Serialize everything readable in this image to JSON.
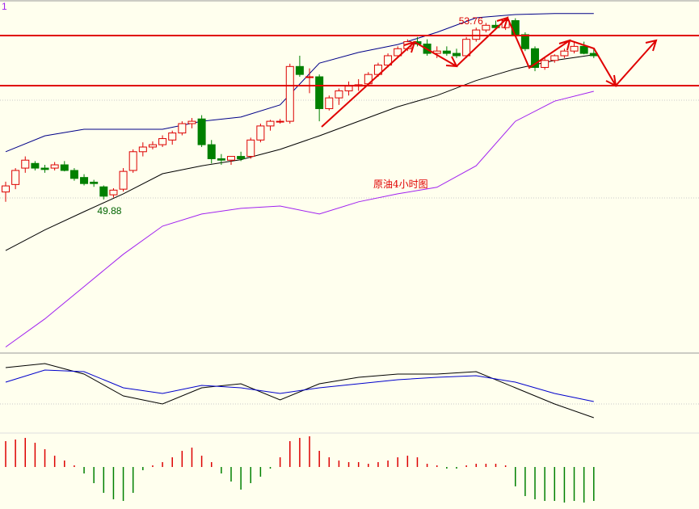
{
  "chart_data": {
    "type": "candlestick",
    "title": "原油4小时图",
    "corner_label": "1",
    "ylim": [
      46.6,
      54.14
    ],
    "open": [
      50.04,
      50.2,
      50.55,
      50.65,
      50.55,
      50.55,
      50.62,
      50.5,
      50.35,
      50.25,
      50.15,
      49.98,
      50.1,
      50.5,
      50.9,
      51.0,
      51.05,
      51.15,
      51.3,
      51.5,
      51.6,
      51.05,
      50.75,
      50.72,
      50.8,
      50.8,
      51.15,
      51.45,
      51.55,
      51.55,
      52.72,
      52.5,
      52.5,
      51.82,
      52.05,
      52.2,
      52.3,
      52.35,
      52.55,
      52.75,
      52.95,
      53.1,
      53.25,
      53.2,
      53.0,
      53.05,
      53.0,
      52.95,
      53.3,
      53.5,
      53.6,
      53.55,
      53.7,
      53.4,
      53.1,
      52.7,
      52.85,
      52.95,
      53.05,
      53.15,
      53.0
    ],
    "high": [
      50.26,
      50.55,
      50.8,
      50.7,
      50.62,
      50.68,
      50.7,
      50.55,
      50.42,
      50.3,
      50.18,
      50.12,
      50.55,
      50.95,
      51.1,
      51.12,
      51.25,
      51.35,
      51.55,
      51.62,
      51.68,
      51.15,
      50.85,
      50.8,
      50.9,
      51.2,
      51.5,
      51.58,
      51.6,
      52.78,
      52.95,
      52.68,
      52.55,
      52.1,
      52.25,
      52.4,
      52.45,
      52.6,
      52.8,
      53.0,
      53.15,
      53.3,
      53.35,
      53.3,
      53.15,
      53.15,
      53.1,
      53.35,
      53.55,
      53.65,
      53.7,
      53.76,
      53.75,
      53.45,
      53.15,
      52.9,
      52.98,
      53.1,
      53.25,
      53.25,
      53.12
    ],
    "low": [
      49.83,
      50.1,
      50.45,
      50.5,
      50.45,
      50.5,
      50.48,
      50.28,
      50.18,
      50.15,
      49.88,
      49.92,
      50.05,
      50.45,
      50.8,
      50.95,
      51.0,
      51.05,
      51.25,
      51.4,
      51.0,
      50.65,
      50.62,
      50.62,
      50.7,
      50.75,
      51.1,
      51.35,
      51.5,
      51.5,
      52.5,
      52.15,
      51.55,
      51.78,
      51.9,
      52.1,
      52.2,
      52.3,
      52.5,
      52.7,
      52.9,
      53.05,
      53.15,
      52.95,
      52.9,
      52.95,
      52.9,
      52.9,
      53.25,
      53.45,
      53.5,
      53.5,
      53.35,
      53.05,
      52.62,
      52.65,
      52.8,
      52.9,
      53.0,
      52.98,
      52.9
    ],
    "close": [
      50.17,
      50.5,
      50.72,
      50.55,
      50.52,
      50.62,
      50.5,
      50.33,
      50.22,
      50.22,
      49.95,
      50.08,
      50.48,
      50.9,
      51.0,
      51.05,
      51.18,
      51.3,
      51.5,
      51.55,
      51.05,
      50.75,
      50.72,
      50.8,
      50.75,
      51.15,
      51.45,
      51.55,
      51.55,
      52.72,
      52.55,
      52.5,
      51.82,
      52.05,
      52.2,
      52.3,
      52.33,
      52.55,
      52.75,
      52.95,
      53.1,
      53.25,
      53.2,
      53.0,
      53.05,
      53.0,
      52.95,
      53.3,
      53.5,
      53.6,
      53.55,
      53.7,
      53.4,
      53.1,
      52.7,
      52.85,
      52.95,
      53.05,
      53.15,
      53.0,
      52.95
    ],
    "up_color": "#dd0000",
    "down_color": "#008000",
    "annotations": [
      {
        "value": 53.76,
        "candle": 52
      },
      {
        "value": 49.88,
        "candle": 11
      }
    ],
    "lines": [
      {
        "color": "#000088",
        "x": [
          0,
          4,
          8,
          12,
          16,
          20,
          24,
          28,
          32,
          36,
          40,
          44,
          48,
          52,
          56,
          60
        ],
        "values": [
          50.9,
          51.24,
          51.38,
          51.38,
          51.38,
          51.55,
          51.64,
          51.9,
          52.79,
          53.02,
          53.19,
          53.45,
          53.76,
          53.83,
          53.85,
          53.85
        ]
      },
      {
        "color": "#000000",
        "x": [
          0,
          4,
          8,
          12,
          16,
          20,
          24,
          28,
          32,
          36,
          40,
          44,
          48,
          52,
          56,
          60
        ],
        "values": [
          48.79,
          49.23,
          49.62,
          50.0,
          50.43,
          50.6,
          50.73,
          50.95,
          51.24,
          51.55,
          51.86,
          52.1,
          52.42,
          52.67,
          52.85,
          52.97
        ]
      },
      {
        "color": "#a020f0",
        "x": [
          0,
          4,
          8,
          12,
          16,
          20,
          24,
          28,
          32,
          36,
          40,
          44,
          48,
          52,
          56,
          60
        ],
        "values": [
          46.73,
          47.33,
          48.02,
          48.71,
          49.31,
          49.57,
          49.69,
          49.74,
          49.57,
          49.83,
          50.0,
          50.14,
          50.6,
          51.55,
          51.98,
          52.19
        ]
      }
    ],
    "macd_ylim": [
      -0.45,
      0.45
    ],
    "macd_lines": [
      {
        "color": "#000000",
        "x": [
          0,
          4,
          8,
          12,
          16,
          20,
          24,
          28,
          32,
          36,
          40,
          44,
          48,
          52,
          56,
          60
        ],
        "values": [
          0.3,
          0.35,
          0.22,
          -0.05,
          -0.15,
          0.05,
          0.1,
          -0.1,
          0.1,
          0.18,
          0.22,
          0.22,
          0.25,
          0.05,
          -0.15,
          -0.32
        ]
      },
      {
        "color": "#0000cc",
        "x": [
          0,
          4,
          8,
          12,
          16,
          20,
          24,
          28,
          32,
          36,
          40,
          44,
          48,
          52,
          56,
          60
        ],
        "values": [
          0.12,
          0.27,
          0.25,
          0.05,
          -0.02,
          0.08,
          0.05,
          -0.02,
          0.05,
          0.1,
          0.15,
          0.18,
          0.2,
          0.12,
          -0.02,
          -0.12
        ]
      }
    ],
    "hist_ylim": [
      -1.2,
      1.2
    ],
    "histogram": [
      0.8,
      0.85,
      0.9,
      0.75,
      0.55,
      0.35,
      0.2,
      0.05,
      -0.2,
      -0.5,
      -0.8,
      -1.0,
      -1.05,
      -0.8,
      -0.1,
      0.05,
      0.15,
      0.3,
      0.5,
      0.6,
      0.35,
      0.15,
      -0.2,
      -0.45,
      -0.7,
      -0.5,
      -0.3,
      -0.05,
      0.3,
      0.8,
      0.9,
      0.95,
      0.5,
      0.3,
      0.2,
      0.15,
      0.15,
      0.1,
      0.15,
      0.2,
      0.3,
      0.35,
      0.3,
      0.1,
      0.05,
      -0.05,
      -0.05,
      0.05,
      0.1,
      0.1,
      0.1,
      0.05,
      -0.6,
      -0.9,
      -1.0,
      -1.05,
      -1.05,
      -1.1,
      -1.05,
      -1.1,
      -1.05
    ]
  }
}
